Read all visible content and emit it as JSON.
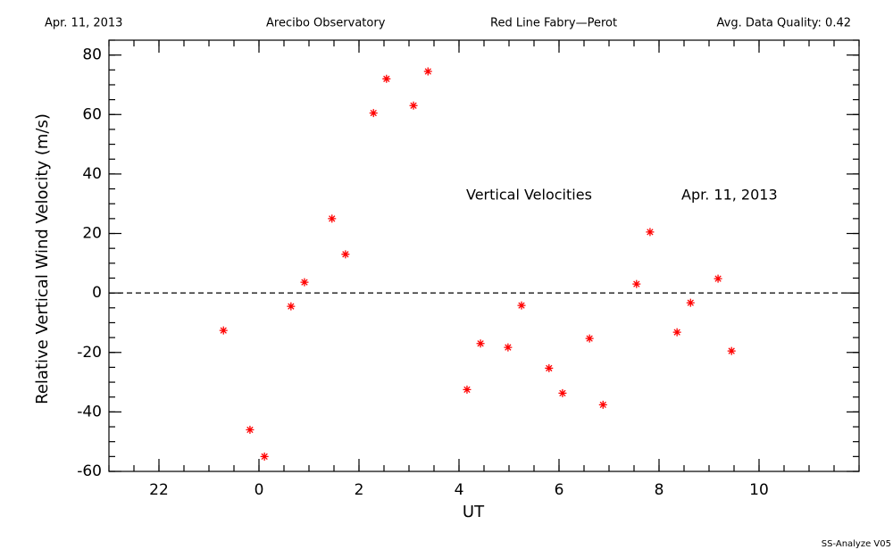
{
  "chart_data": {
    "type": "scatter",
    "header": [
      "Apr. 11, 2013",
      "Arecibo Observatory",
      "Red Line Fabry—Perot",
      "Avg. Data Quality: 0.42"
    ],
    "xlabel": "UT",
    "ylabel": "Relative Vertical Wind Velocity (m/s)",
    "annotations": [
      "Vertical Velocities",
      "Apr. 11, 2013"
    ],
    "footer": "SS-Analyze V05",
    "xlim": [
      -3,
      12
    ],
    "xticks": [
      {
        "value": -2,
        "label": "22"
      },
      0,
      2,
      4,
      6,
      8,
      10
    ],
    "ylim": [
      -60,
      85
    ],
    "yticks": [
      -60,
      -40,
      -20,
      0,
      20,
      40,
      60,
      80
    ],
    "reference_line": 0,
    "color": "#ff0000",
    "x": [
      -0.71,
      -0.18,
      0.11,
      0.64,
      0.91,
      1.46,
      1.73,
      2.29,
      2.55,
      3.09,
      3.38,
      4.16,
      4.43,
      4.98,
      5.25,
      5.8,
      6.07,
      6.61,
      6.88,
      7.55,
      7.82,
      8.36,
      8.63,
      9.18,
      9.45
    ],
    "values": [
      -12.6,
      -46,
      -55,
      -4.5,
      3.6,
      25,
      13,
      60.5,
      72,
      63,
      74.5,
      -32.5,
      -17,
      -18.3,
      -4.2,
      -25.3,
      -33.7,
      -15.3,
      -37.6,
      3,
      20.5,
      -13.2,
      -3.3,
      4.8,
      -19.5
    ]
  }
}
